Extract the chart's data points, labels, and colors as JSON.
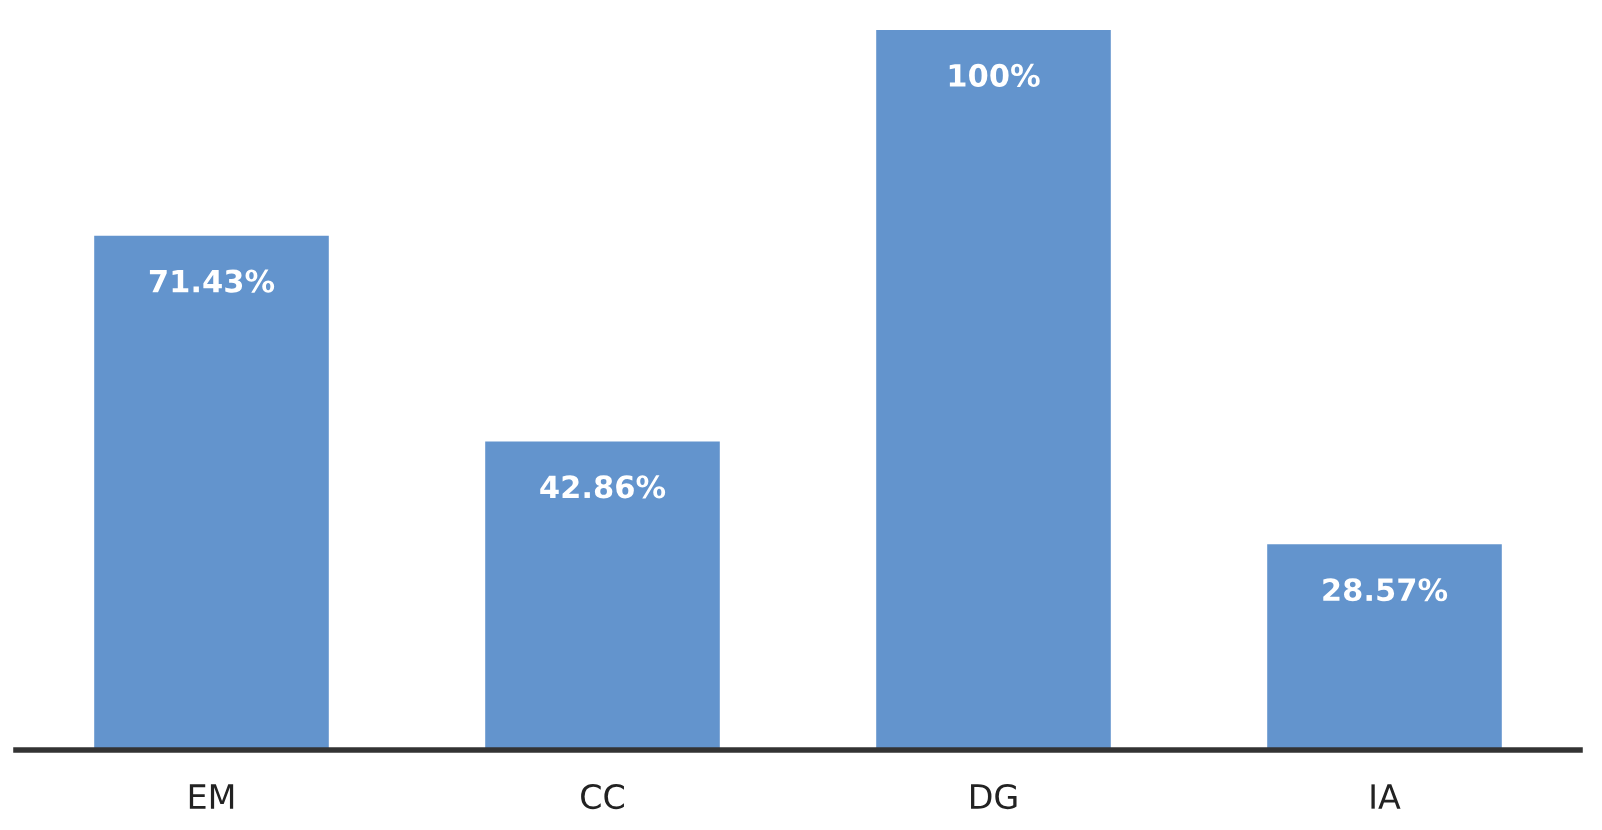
{
  "chart_data": {
    "type": "bar",
    "categories": [
      "EM",
      "CC",
      "DG",
      "IA"
    ],
    "values": [
      71.43,
      42.86,
      100,
      28.57
    ],
    "value_labels": [
      "71.43%",
      "42.86%",
      "100%",
      "28.57%"
    ],
    "color": "#6394cd",
    "grid": false,
    "legend": false
  }
}
